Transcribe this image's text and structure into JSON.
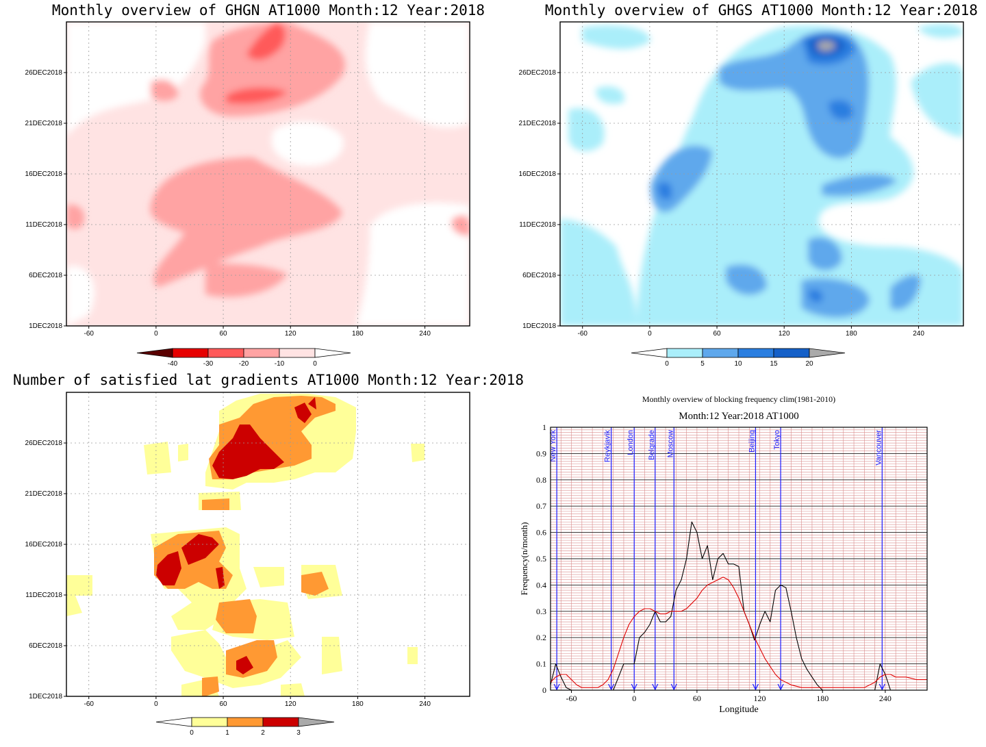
{
  "chart_data": [
    {
      "id": "ghgn",
      "type": "heatmap",
      "title": "Monthly overview of GHGN AT1000 Month:12 Year:2018",
      "x_ticks": [
        -60,
        0,
        60,
        120,
        180,
        240
      ],
      "xlim": [
        -80,
        280
      ],
      "y_ticks": [
        "1DEC2018",
        "6DEC2018",
        "11DEC2018",
        "16DEC2018",
        "21DEC2018",
        "26DEC2018"
      ],
      "ylim_days": [
        1,
        31
      ],
      "grid": true,
      "colorbar": {
        "labels": [
          "-40",
          "-30",
          "-20",
          "-10",
          "0"
        ],
        "colors": [
          "#5a0000",
          "#e60000",
          "#ff5a5a",
          "#ffa3a3",
          "#ffe3e3",
          "#ffffff"
        ],
        "triangles": [
          "left",
          "right"
        ]
      },
      "regions": [
        {
          "level": "#ffe3e3",
          "lon": [
            -75,
            275
          ],
          "day": [
            1,
            31
          ],
          "note": "background light pink"
        },
        {
          "level": "#ffffff",
          "lon": [
            -75,
            5
          ],
          "day": [
            15,
            31
          ]
        },
        {
          "level": "#ffffff",
          "lon": [
            130,
            275
          ],
          "day": [
            1,
            11
          ]
        },
        {
          "level": "#ffffff",
          "lon": [
            150,
            275
          ],
          "day": [
            12,
            23
          ]
        },
        {
          "level": "#ffa3a3",
          "lon": [
            0,
            170
          ],
          "day": [
            9,
            17
          ]
        },
        {
          "level": "#ffa3a3",
          "lon": [
            10,
            130
          ],
          "day": [
            3,
            10
          ]
        },
        {
          "level": "#ffa3a3",
          "lon": [
            40,
            150
          ],
          "day": [
            20,
            31
          ]
        },
        {
          "level": "#ff5a5a",
          "lon": [
            60,
            115
          ],
          "day": [
            22,
            25
          ]
        },
        {
          "level": "#ff5a5a",
          "lon": [
            80,
            120
          ],
          "day": [
            26,
            31
          ]
        }
      ]
    },
    {
      "id": "ghgs",
      "type": "heatmap",
      "title": "Monthly overview of GHGS AT1000 Month:12 Year:2018",
      "x_ticks": [
        -60,
        0,
        60,
        120,
        180,
        240
      ],
      "xlim": [
        -80,
        280
      ],
      "y_ticks": [
        "1DEC2018",
        "6DEC2018",
        "11DEC2018",
        "16DEC2018",
        "21DEC2018",
        "26DEC2018"
      ],
      "ylim_days": [
        1,
        31
      ],
      "grid": true,
      "colorbar": {
        "labels": [
          "0",
          "5",
          "10",
          "15",
          "20"
        ],
        "colors": [
          "#ffffff",
          "#aaeefa",
          "#5fa8ec",
          "#2a7ee0",
          "#1560c8",
          "#aaaaaa"
        ],
        "triangles": [
          "left",
          "right"
        ]
      },
      "regions": [
        {
          "level": "#aaeefa",
          "lon": [
            0,
            270
          ],
          "day": [
            1,
            31
          ]
        },
        {
          "level": "#aaeefa",
          "lon": [
            -75,
            0
          ],
          "day": [
            1,
            12
          ]
        },
        {
          "level": "#5fa8ec",
          "lon": [
            60,
            200
          ],
          "day": [
            18,
            31
          ]
        },
        {
          "level": "#5fa8ec",
          "lon": [
            0,
            60
          ],
          "day": [
            11,
            20
          ]
        },
        {
          "level": "#5fa8ec",
          "lon": [
            140,
            200
          ],
          "day": [
            1,
            10
          ]
        },
        {
          "level": "#2a7ee0",
          "lon": [
            135,
            185
          ],
          "day": [
            26,
            31
          ]
        },
        {
          "level": "#1560c8",
          "lon": [
            140,
            180
          ],
          "day": [
            28,
            31
          ]
        },
        {
          "level": "#aaaaaa",
          "lon": [
            150,
            160
          ],
          "day": [
            29,
            30
          ]
        }
      ]
    },
    {
      "id": "gradients",
      "type": "heatmap",
      "title": "Number of satisfied lat gradients AT1000 Month:12 Year:2018",
      "x_ticks": [
        -60,
        0,
        60,
        120,
        180,
        240
      ],
      "xlim": [
        -80,
        280
      ],
      "y_ticks": [
        "1DEC2018",
        "6DEC2018",
        "11DEC2018",
        "16DEC2018",
        "21DEC2018",
        "26DEC2018"
      ],
      "ylim_days": [
        1,
        31
      ],
      "grid": true,
      "colorbar": {
        "labels": [
          "0",
          "1",
          "2",
          "3"
        ],
        "colors": [
          "#ffffff",
          "#ffff99",
          "#ff9933",
          "#cc0000",
          "#aaaaaa"
        ],
        "triangles": [
          "left",
          "right"
        ]
      },
      "regions": [
        {
          "level": "#ffff99",
          "lon": [
            40,
            175
          ],
          "day": [
            22,
            31
          ]
        },
        {
          "level": "#ff9933",
          "lon": [
            50,
            145
          ],
          "day": [
            22,
            31
          ]
        },
        {
          "level": "#cc0000",
          "lon": [
            50,
            115
          ],
          "day": [
            22,
            27
          ]
        },
        {
          "level": "#ffff99",
          "lon": [
            0,
            75
          ],
          "day": [
            10,
            17
          ]
        },
        {
          "level": "#ff9933",
          "lon": [
            0,
            65
          ],
          "day": [
            11,
            16
          ]
        },
        {
          "level": "#cc0000",
          "lon": [
            0,
            55
          ],
          "day": [
            12,
            16
          ]
        },
        {
          "level": "#ffff99",
          "lon": [
            20,
            160
          ],
          "day": [
            1,
            11
          ]
        },
        {
          "level": "#ff9933",
          "lon": [
            55,
            110
          ],
          "day": [
            2,
            5
          ]
        },
        {
          "level": "#cc0000",
          "lon": [
            70,
            85
          ],
          "day": [
            2,
            4
          ]
        }
      ]
    },
    {
      "id": "blocking",
      "type": "line",
      "title": "Monthly overview of blocking frequency clim(1981-2010)",
      "subtitle": "Month:12 Year:2018  AT1000",
      "xlabel": "Longitude",
      "ylabel": "Frequency(n/month)",
      "xlim": [
        -80,
        280
      ],
      "ylim": [
        0,
        1
      ],
      "x_ticks": [
        -60,
        0,
        60,
        120,
        180,
        240
      ],
      "y_ticks": [
        0,
        0.1,
        0.2,
        0.3,
        0.4,
        0.5,
        0.6,
        0.7,
        0.8,
        0.9,
        1
      ],
      "grid": true,
      "cities": [
        {
          "name": "New York",
          "lon": -74
        },
        {
          "name": "Reykjavik",
          "lon": -22
        },
        {
          "name": "London",
          "lon": 0
        },
        {
          "name": "Belgrade",
          "lon": 20
        },
        {
          "name": "Moscow",
          "lon": 38
        },
        {
          "name": "Beijing",
          "lon": 116
        },
        {
          "name": "Tokyo",
          "lon": 140
        },
        {
          "name": "Vancouver",
          "lon": 237
        }
      ],
      "series": [
        {
          "color": "#000000",
          "x": [
            -80,
            -75,
            -70,
            -65,
            -60,
            -30,
            -25,
            -20,
            -15,
            -10,
            -5,
            0,
            5,
            10,
            15,
            20,
            25,
            30,
            35,
            40,
            45,
            50,
            55,
            60,
            65,
            70,
            75,
            80,
            85,
            90,
            95,
            100,
            105,
            110,
            115,
            120,
            125,
            130,
            135,
            140,
            145,
            150,
            155,
            160,
            165,
            170,
            175,
            180,
            185,
            230,
            235,
            240,
            245,
            280
          ],
          "y": [
            0.02,
            0.1,
            0.05,
            0.01,
            0,
            0,
            0,
            0,
            0.05,
            0.1,
            0.1,
            0.1,
            0.2,
            0.22,
            0.25,
            0.3,
            0.26,
            0.26,
            0.28,
            0.38,
            0.42,
            0.5,
            0.64,
            0.6,
            0.5,
            0.55,
            0.42,
            0.5,
            0.52,
            0.48,
            0.48,
            0.47,
            0.3,
            0.25,
            0.19,
            0.25,
            0.3,
            0.26,
            0.38,
            0.4,
            0.39,
            0.3,
            0.2,
            0.12,
            0.08,
            0.05,
            0.02,
            0,
            0,
            0,
            0.1,
            0.06,
            0,
            0
          ]
        },
        {
          "color": "#e00000",
          "x": [
            -80,
            -75,
            -70,
            -65,
            -60,
            -55,
            -50,
            -45,
            -40,
            -35,
            -30,
            -25,
            -20,
            -15,
            -10,
            -5,
            0,
            5,
            10,
            15,
            20,
            25,
            30,
            35,
            40,
            45,
            50,
            55,
            60,
            65,
            70,
            75,
            80,
            85,
            90,
            95,
            100,
            105,
            110,
            115,
            120,
            125,
            130,
            135,
            140,
            145,
            150,
            160,
            170,
            180,
            190,
            200,
            210,
            220,
            230,
            235,
            240,
            245,
            250,
            260,
            270,
            280
          ],
          "y": [
            0.03,
            0.05,
            0.06,
            0.06,
            0.04,
            0.02,
            0.01,
            0.01,
            0.01,
            0.01,
            0.02,
            0.04,
            0.08,
            0.14,
            0.2,
            0.25,
            0.28,
            0.3,
            0.31,
            0.31,
            0.3,
            0.29,
            0.29,
            0.3,
            0.3,
            0.3,
            0.31,
            0.33,
            0.35,
            0.38,
            0.4,
            0.41,
            0.42,
            0.43,
            0.42,
            0.39,
            0.35,
            0.3,
            0.25,
            0.2,
            0.16,
            0.12,
            0.09,
            0.06,
            0.04,
            0.03,
            0.02,
            0.01,
            0.01,
            0.01,
            0.01,
            0.01,
            0.01,
            0.01,
            0.03,
            0.05,
            0.06,
            0.06,
            0.05,
            0.05,
            0.04,
            0.04
          ]
        }
      ]
    }
  ]
}
